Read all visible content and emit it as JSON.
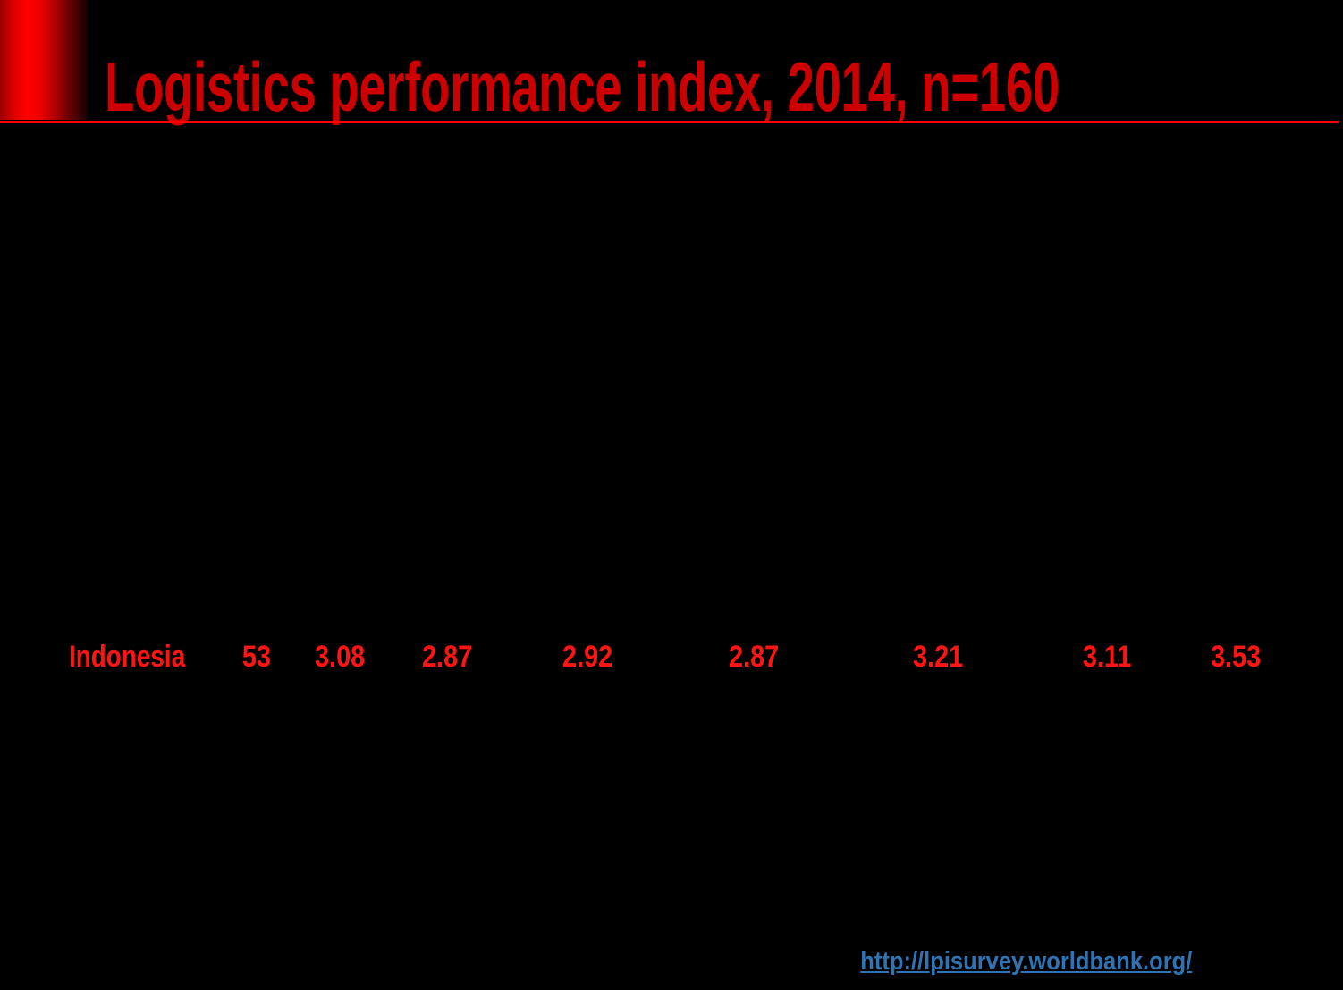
{
  "slide": {
    "title": "Logistics performance index, 2014, n=160"
  },
  "table": {
    "row": {
      "country": "Indonesia",
      "values": [
        "53",
        "3.08",
        "2.87",
        "2.92",
        "2.87",
        "3.21",
        "3.11",
        "3.53"
      ]
    }
  },
  "footer": {
    "link": "http://lpisurvey.worldbank.org/"
  },
  "colors": {
    "background": "#000000",
    "accent_bar_bright": "#ff0000",
    "divider": "#ff0000",
    "title_text": "#cc0000",
    "row_text": "#ff1414",
    "link_text": "#2e74b5"
  }
}
